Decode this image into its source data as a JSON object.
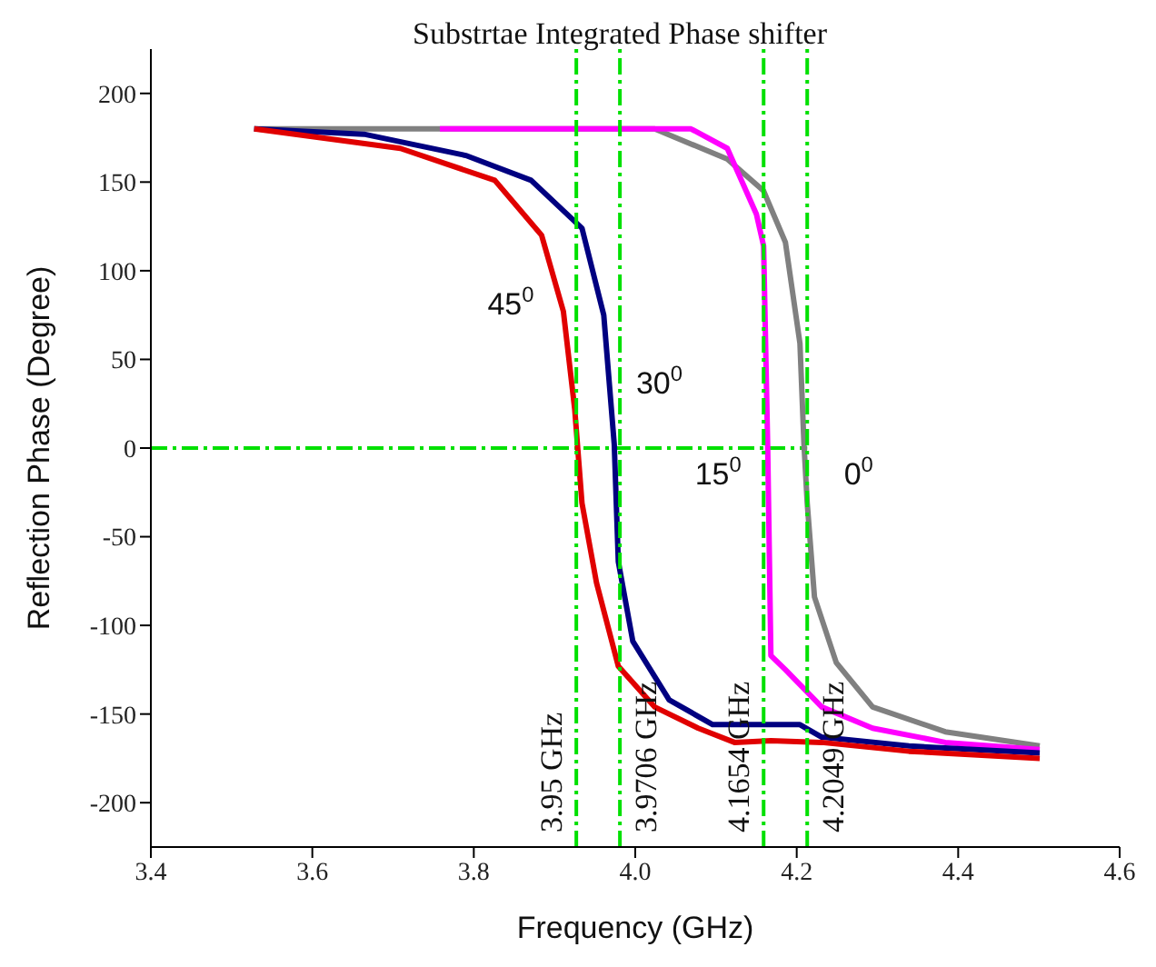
{
  "chart_data": {
    "type": "line",
    "title": "Substrtae Integrated Phase shifter",
    "xlabel": "Frequency (GHz)",
    "ylabel": "Reflection Phase (Degree)",
    "xlim": [
      3.4,
      4.6
    ],
    "xticks": [
      {
        "value": 3.4,
        "label": "3.4"
      },
      {
        "value": 3.6,
        "label": "3.6"
      },
      {
        "value": 3.8,
        "label": "3.8"
      },
      {
        "value": 4.0,
        "label": "4.0"
      },
      {
        "value": 4.2,
        "label": "4.2"
      },
      {
        "value": 4.4,
        "label": "4.4"
      },
      {
        "value": 4.6,
        "label": "4.6"
      }
    ],
    "ylim": [
      -225,
      225
    ],
    "yticks": [
      -200,
      -150,
      -100,
      -50,
      0,
      50,
      100,
      150,
      200
    ],
    "line_style": "solid",
    "series": [
      {
        "name": "0$^{0}$",
        "color": "#808080",
        "x": [
          3.528,
          4.024,
          4.114,
          4.159,
          4.186,
          4.204,
          4.209,
          4.213,
          4.222,
          4.249,
          4.294,
          4.384,
          4.501
        ],
        "values": [
          180,
          180,
          163,
          145,
          116,
          59,
          2,
          -31,
          -84,
          -121,
          -146,
          -160,
          -168
        ]
      },
      {
        "name": "15$^{0}$",
        "color": "#ff00ff",
        "x": [
          3.758,
          4.069,
          4.114,
          4.15,
          4.159,
          4.164,
          4.168,
          4.186,
          4.231,
          4.294,
          4.384,
          4.501
        ],
        "values": [
          180,
          180,
          169,
          132,
          114,
          2,
          -117,
          -125,
          -146,
          -158,
          -166,
          -170
        ]
      },
      {
        "name": "30$^{0}$",
        "color": "#000080",
        "x": [
          3.528,
          3.664,
          3.79,
          3.871,
          3.934,
          3.961,
          3.974,
          3.979,
          3.997,
          4.042,
          4.096,
          4.204,
          4.231,
          4.339,
          4.501
        ],
        "values": [
          180,
          177,
          165,
          151,
          124,
          75,
          2,
          -64,
          -109,
          -142,
          -156,
          -156,
          -163,
          -168,
          -172
        ]
      },
      {
        "name": "45$^{0}$",
        "color": "#e00000",
        "x": [
          3.528,
          3.709,
          3.826,
          3.884,
          3.911,
          3.925,
          3.934,
          3.952,
          3.979,
          4.024,
          4.078,
          4.123,
          4.168,
          4.231,
          4.339,
          4.501
        ],
        "values": [
          180,
          169,
          151,
          120,
          77,
          22,
          -31,
          -76,
          -123,
          -146,
          -158,
          -166,
          -165,
          -166,
          -171,
          -175
        ]
      }
    ],
    "ref_lines": [
      {
        "axis": "y",
        "value": 0,
        "color": "#00e000",
        "line_style": "dashed"
      },
      {
        "axis": "x",
        "value": 3.927,
        "label": "3.95 GHz",
        "color": "#00e000",
        "line_style": "dashed"
      },
      {
        "axis": "x",
        "value": 3.981,
        "label": "3.9706 GHz",
        "color": "#00e000",
        "line_style": "dashed"
      },
      {
        "axis": "x",
        "value": 4.159,
        "label": "4.1654 GHz",
        "color": "#00e000",
        "line_style": "dashed"
      },
      {
        "axis": "x",
        "value": 4.213,
        "label": "4.2049 GHz",
        "color": "#00e000",
        "line_style": "dashed"
      }
    ]
  }
}
